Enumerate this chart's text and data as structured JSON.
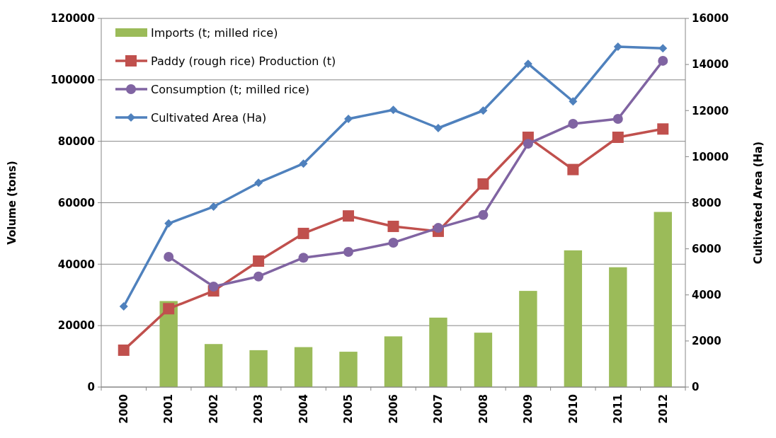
{
  "chart_data": {
    "type": "bar",
    "ylabel": "Volume (tons)",
    "y2label": "Cultivated Area (Ha)",
    "categories": [
      "2000",
      "2001",
      "2002",
      "2003",
      "2004",
      "2005",
      "2006",
      "2007",
      "2008",
      "2009",
      "2010",
      "2011",
      "2012"
    ],
    "series": [
      {
        "name": "Imports (t; milled rice)",
        "color": "#9bbb59",
        "values": [
          null,
          28000,
          14000,
          12000,
          13000,
          11500,
          16500,
          22600,
          17700,
          31300,
          44500,
          39000,
          57000
        ]
      },
      {
        "name": "Paddy (rough rice) Production (t)",
        "type": "line",
        "marker": "square",
        "color": "#c0504d",
        "values": [
          12000,
          25500,
          31300,
          41000,
          50000,
          55700,
          52300,
          50700,
          66100,
          81300,
          70800,
          81300,
          84000
        ]
      },
      {
        "name": "Consumption (t; milled rice)",
        "type": "line",
        "marker": "circle",
        "color": "#8064a2",
        "values": [
          null,
          42400,
          32700,
          36000,
          42100,
          44000,
          47000,
          51800,
          56000,
          79200,
          85700,
          87300,
          106200
        ]
      },
      {
        "name": "Cultivated Area (Ha)",
        "type": "line",
        "marker": "diamond",
        "axis": "y2",
        "color": "#4f81bd",
        "values": [
          3500,
          7100,
          7830,
          8870,
          9700,
          11640,
          12030,
          11240,
          12000,
          14030,
          12400,
          14770,
          14700
        ]
      }
    ],
    "ylim": [
      0,
      120000
    ],
    "yticks": [
      0,
      20000,
      40000,
      60000,
      80000,
      100000,
      120000
    ],
    "y2lim": [
      0,
      16000
    ],
    "y2ticks": [
      0,
      2000,
      4000,
      6000,
      8000,
      10000,
      12000,
      14000,
      16000
    ],
    "grid": "y",
    "legend": "top left"
  }
}
